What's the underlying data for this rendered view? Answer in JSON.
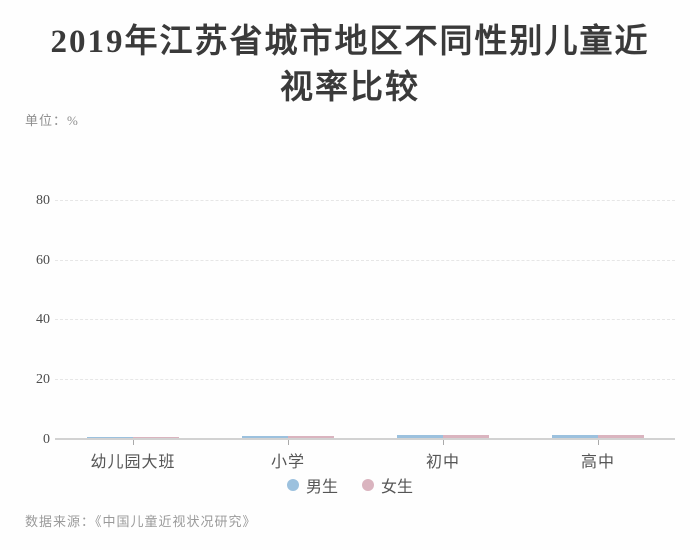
{
  "title": {
    "line1": "2019年江苏省城市地区不同性别儿童近",
    "line2": "视率比较"
  },
  "unit_label": "单位：%",
  "source": "数据来源：《中国儿童近视状况研究》",
  "colors": {
    "background": "#fefefe",
    "title_text": "#3a3a3a",
    "axis_line": "#d2d2d2",
    "grid_line": "#e6e6e6",
    "boys": "#9cc1de",
    "girls": "#dab4bf"
  },
  "chart_data": {
    "type": "bar",
    "title": "2019年江苏省城市地区不同性别儿童近视率比较",
    "categories": [
      "幼儿园大班",
      "小学",
      "初中",
      "高中"
    ],
    "series": [
      {
        "name": "男生",
        "color": "#9cc1de",
        "values": [
          0.5,
          0.7,
          0.9,
          0.9
        ]
      },
      {
        "name": "女生",
        "color": "#dab4bf",
        "values": [
          0.5,
          0.7,
          0.9,
          0.9
        ]
      }
    ],
    "ylabel": "%",
    "yticks": [
      0,
      20,
      40,
      60,
      80
    ],
    "ylim": [
      0,
      90
    ],
    "grid": "horizontal dashed",
    "legend_position": "bottom center",
    "note": "All bars are rendered at near-zero height (≈1% or less), as in the initial frame of a bar-growth animation; true values are not readable from the pixels."
  }
}
